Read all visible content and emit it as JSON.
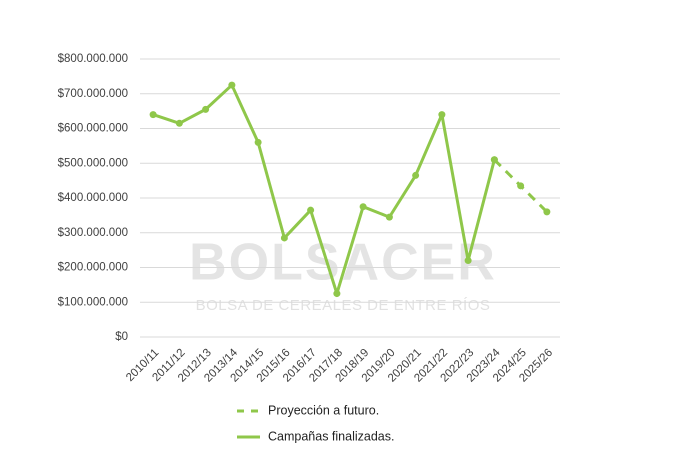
{
  "chart_data": {
    "type": "line",
    "watermark": {
      "title": "BOLSACER",
      "subtitle": "BOLSA DE CEREALES DE ENTRE RÍOS"
    },
    "categories": [
      "2010/11",
      "2011/12",
      "2012/13",
      "2013/14",
      "2014/15",
      "2015/16",
      "2016/17",
      "2017/18",
      "2018/19",
      "2019/20",
      "2020/21",
      "2021/22",
      "2022/23",
      "2023/24",
      "2024/25",
      "2025/26"
    ],
    "series": [
      {
        "name": "Proyección a futuro.",
        "color": "#8fc74a",
        "dashed": true,
        "values": [
          null,
          null,
          null,
          null,
          null,
          null,
          null,
          null,
          null,
          null,
          null,
          null,
          null,
          510000000,
          435000000,
          360000000
        ]
      },
      {
        "name": "Campañas finalizadas.",
        "color": "#8fc74a",
        "dashed": false,
        "values": [
          640000000,
          615000000,
          655000000,
          725000000,
          560000000,
          285000000,
          365000000,
          125000000,
          375000000,
          345000000,
          465000000,
          640000000,
          220000000,
          510000000,
          null,
          null
        ]
      }
    ],
    "ylim": [
      0,
      800000000
    ],
    "yticks": [
      {
        "value": 0,
        "label": "$0"
      },
      {
        "value": 100000000,
        "label": "$100.000.000"
      },
      {
        "value": 200000000,
        "label": "$200.000.000"
      },
      {
        "value": 300000000,
        "label": "$300.000.000"
      },
      {
        "value": 400000000,
        "label": "$400.000.000"
      },
      {
        "value": 500000000,
        "label": "$500.000.000"
      },
      {
        "value": 600000000,
        "label": "$600.000.000"
      },
      {
        "value": 700000000,
        "label": "$700.000.000"
      },
      {
        "value": 800000000,
        "label": "$800.000.000"
      }
    ],
    "grid": true,
    "legend": "bottom"
  }
}
